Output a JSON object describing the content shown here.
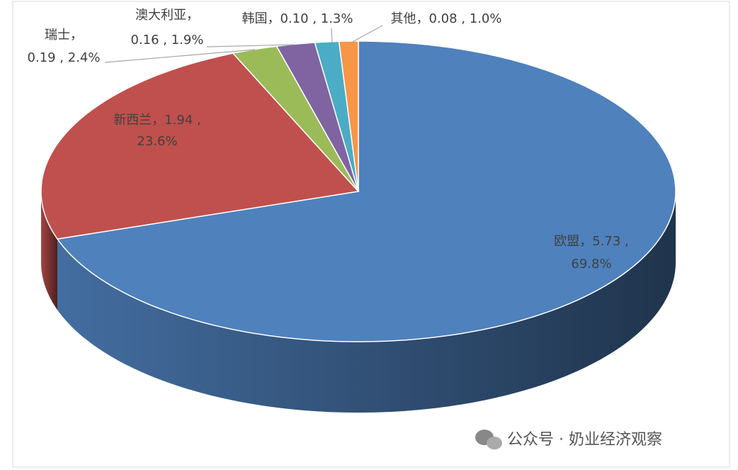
{
  "chart_data": {
    "type": "pie3d",
    "categories": [
      "欧盟",
      "新西兰",
      "瑞士",
      "澳大利亚",
      "韩国",
      "其他"
    ],
    "values": [
      5.73,
      1.94,
      0.19,
      0.16,
      0.1,
      0.08
    ],
    "value_labels": [
      [
        "欧盟，5.73 ,",
        "69.8%"
      ],
      [
        "新西兰，1.94 ,",
        "23.6%"
      ],
      [
        "瑞士，",
        "0.19 , 2.4%"
      ],
      [
        "澳大利亚，",
        "0.16 , 1.9%"
      ],
      [
        "韩国，0.10 , 1.3%"
      ],
      [
        "其他，0.08 , 1.0%"
      ]
    ],
    "colors": [
      "#4f81bd",
      "#c0504d",
      "#9bbb59",
      "#8064a2",
      "#4bacc6",
      "#f79646"
    ],
    "watermark": "公众号 · 奶业经济观察"
  }
}
